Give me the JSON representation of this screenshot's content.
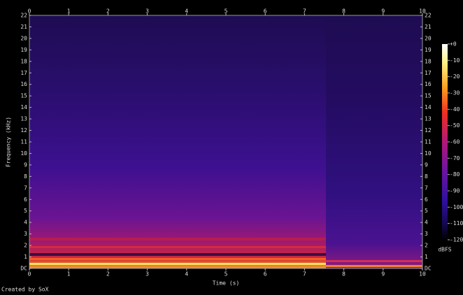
{
  "chart_data": {
    "type": "spectrogram",
    "xlabel": "Time (s)",
    "ylabel": "Frequency (kHz)",
    "xlim": [
      0,
      10
    ],
    "xticks": [
      0,
      1,
      2,
      3,
      4,
      5,
      6,
      7,
      8,
      9,
      10
    ],
    "ylim": [
      0,
      22
    ],
    "yticks": [
      {
        "value": 0,
        "label": "DC"
      },
      1,
      2,
      3,
      4,
      5,
      6,
      7,
      8,
      9,
      10,
      11,
      12,
      13,
      14,
      15,
      16,
      17,
      18,
      19,
      20,
      21,
      22
    ],
    "colorbar": {
      "label": "dBFS",
      "lim": [
        -120,
        0
      ],
      "ticks": [
        {
          "value": 0,
          "label": "+0"
        },
        -10,
        -20,
        -30,
        -40,
        -50,
        -60,
        -70,
        -80,
        -90,
        -100,
        -110,
        -120
      ]
    },
    "footer": "Created by SoX"
  }
}
